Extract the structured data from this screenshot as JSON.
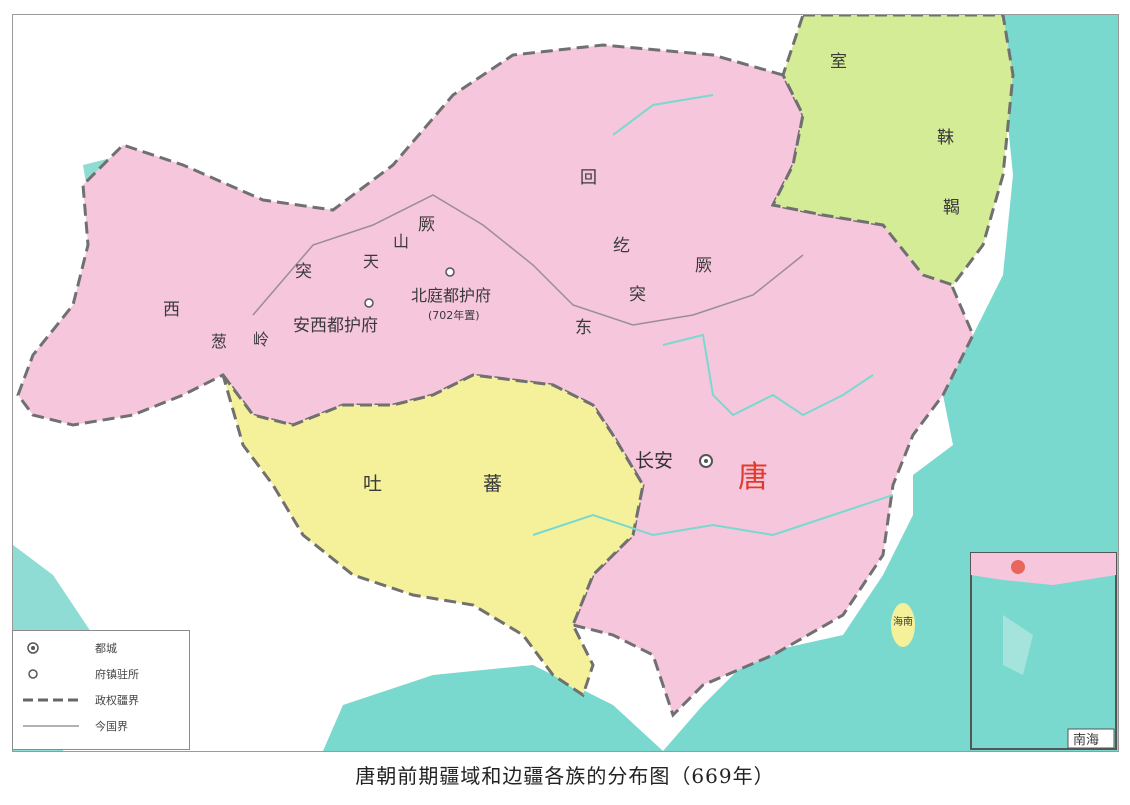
{
  "caption": "唐朝前期疆域和边疆各族的分布图（669年）",
  "labels": {
    "tang": "唐",
    "changan": "长安",
    "tubo_1": "吐",
    "tubo_2": "蕃",
    "shiwei": "室",
    "mohe_1": "靺",
    "mohe_2": "鞨",
    "huihe": "回",
    "tujue_west_1": "突",
    "tujue_west_2": "厥",
    "xi": "西",
    "congling_1": "葱",
    "congling_2": "岭",
    "tianshan_1": "天",
    "tianshan_2": "山",
    "tujue_east_1": "东",
    "tujue_east_2": "突",
    "tujue_east_3": "厥",
    "tujue_east_4": "纥",
    "anxi": "安西都护府",
    "beiting": "北庭都护府",
    "beiting_note": "(702年置)",
    "nanhai": "南海",
    "hainan": "海南"
  },
  "legend": {
    "capital": "都城",
    "seat": "府镇驻所",
    "boundary": "政权疆界",
    "modern_boundary": "今国界"
  },
  "colors": {
    "tang_territory": "#f6c6dc",
    "tubo_territory": "#f5f19a",
    "mohe_territory": "#d4ec96",
    "sea": "#6ed6cc",
    "tang_label": "#e23a2a"
  }
}
